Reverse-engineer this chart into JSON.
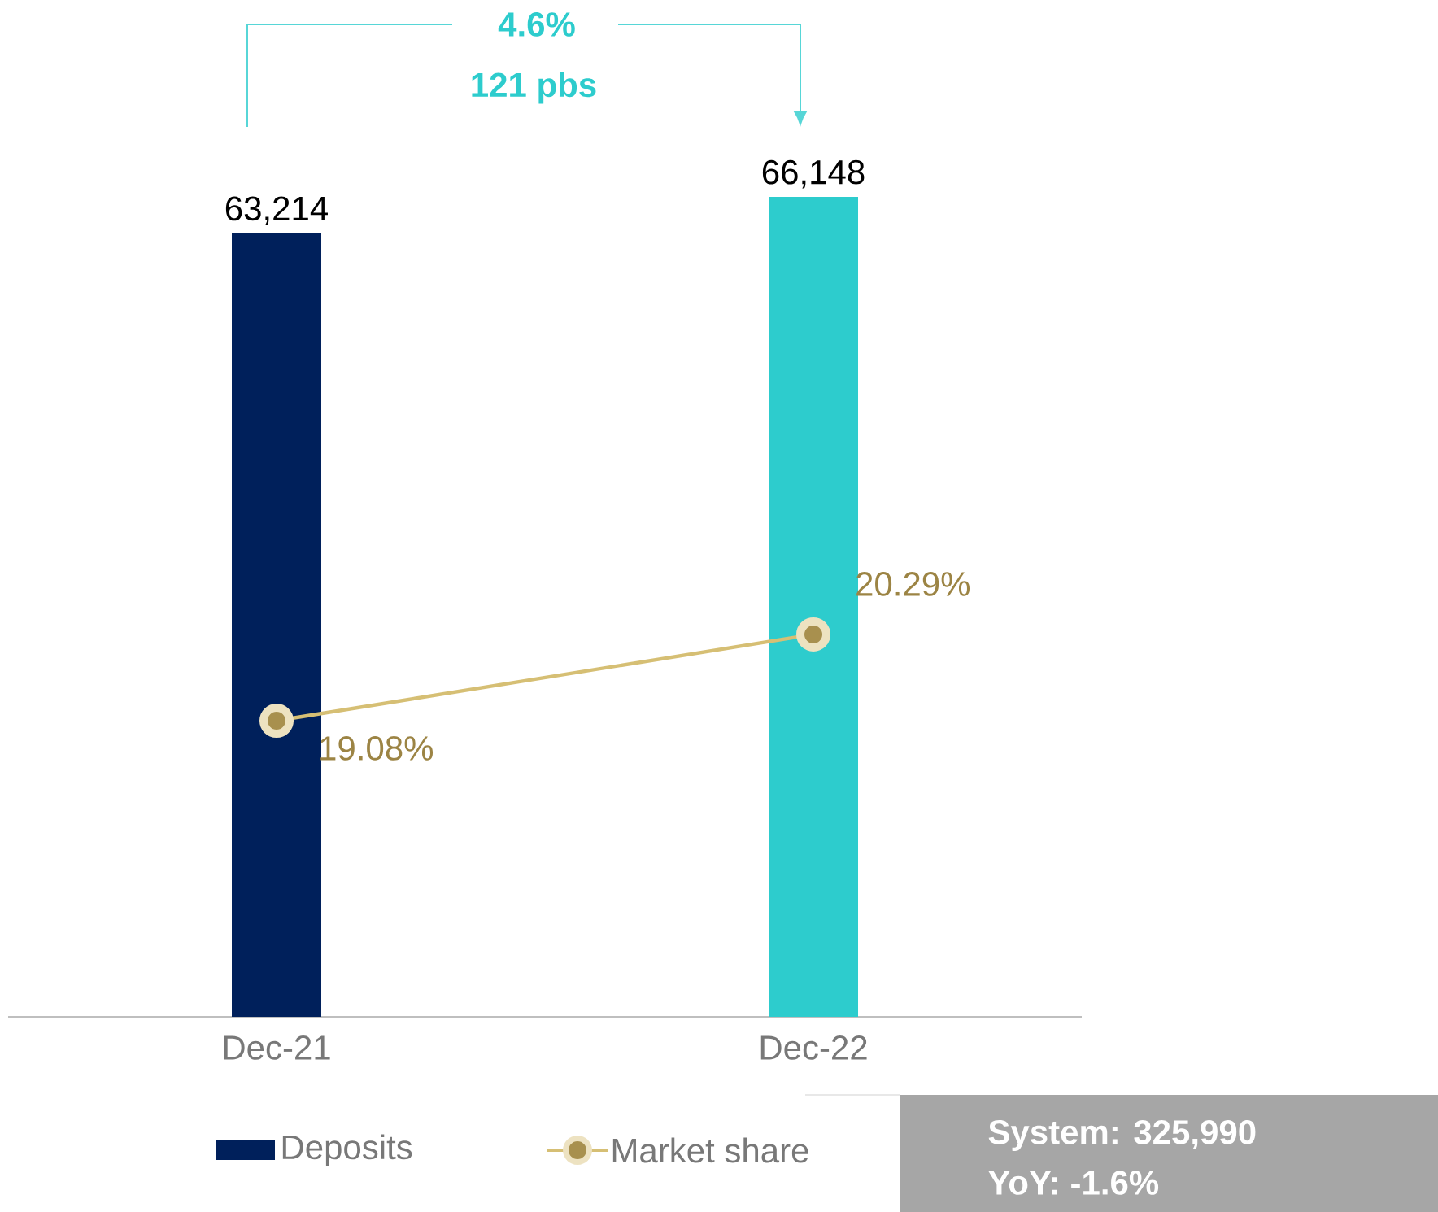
{
  "chart_data": {
    "type": "bar",
    "categories": [
      "Dec-21",
      "Dec-22"
    ],
    "series": [
      {
        "name": "Deposits",
        "colors": [
          "#00205b",
          "#2dcccd"
        ],
        "values": [
          63214,
          66148
        ],
        "value_labels": [
          "63,214",
          "66,148"
        ]
      },
      {
        "name": "Market share",
        "type": "line",
        "axis": "y2",
        "color": "#d6bf74",
        "values": [
          19.08,
          20.29
        ],
        "value_labels": [
          "19.08%",
          "20.29%"
        ]
      }
    ],
    "tick_labels": "x",
    "marker": "circle",
    "legend": "bottom",
    "annotations": [
      "4.6%",
      "121 pbs",
      "System: 325,990",
      "YoY: -1.6%"
    ]
  }
}
